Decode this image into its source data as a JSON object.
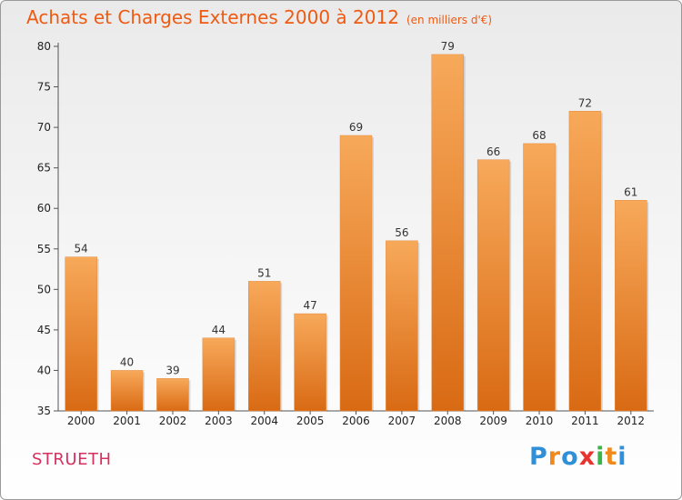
{
  "chart_data": {
    "type": "bar",
    "title": "Achats et Charges Externes 2000 à 2012",
    "subtitle": "(en milliers d'€)",
    "categories": [
      "2000",
      "2001",
      "2002",
      "2003",
      "2004",
      "2005",
      "2006",
      "2007",
      "2008",
      "2009",
      "2010",
      "2011",
      "2012"
    ],
    "values": [
      54,
      40,
      39,
      44,
      51,
      47,
      69,
      56,
      79,
      66,
      68,
      72,
      61
    ],
    "ylim": [
      35,
      80
    ],
    "yticks": [
      35,
      40,
      45,
      50,
      55,
      60,
      65,
      70,
      75,
      80
    ],
    "xlabel": "",
    "ylabel": "",
    "grid": false,
    "bar_color": "#f07d24"
  },
  "commune": "STRUETH",
  "logo": {
    "text": "Proxiti",
    "letters": [
      "P",
      "r",
      "o",
      "x",
      "i",
      "t",
      "i"
    ],
    "colors": [
      "#2f8fd8",
      "#f08a1c",
      "#2f8fd8",
      "#e8342f",
      "#39b54a",
      "#f08a1c",
      "#2f8fd8"
    ]
  }
}
